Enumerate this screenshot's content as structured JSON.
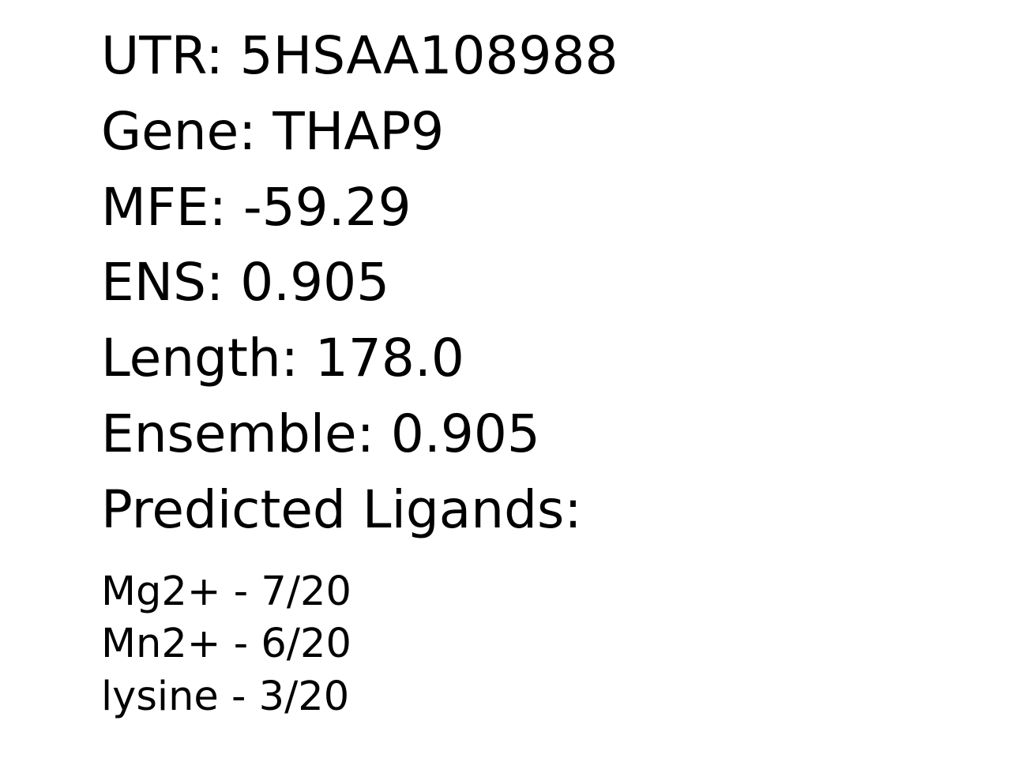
{
  "fields": {
    "utr_label": "UTR:",
    "utr_value": "5HSAA108988",
    "gene_label": "Gene:",
    "gene_value": "THAP9",
    "mfe_label": "MFE:",
    "mfe_value": "-59.29",
    "ens_label": "ENS:",
    "ens_value": "0.905",
    "length_label": "Length:",
    "length_value": "178.0",
    "ensemble_label": "Ensemble:",
    "ensemble_value": "0.905",
    "ligands_heading": "Predicted Ligands:"
  },
  "ligands": [
    {
      "name": "Mg2+",
      "score": "7/20"
    },
    {
      "name": "Mn2+",
      "score": "6/20"
    },
    {
      "name": "lysine",
      "score": "3/20"
    }
  ],
  "separator": "-"
}
